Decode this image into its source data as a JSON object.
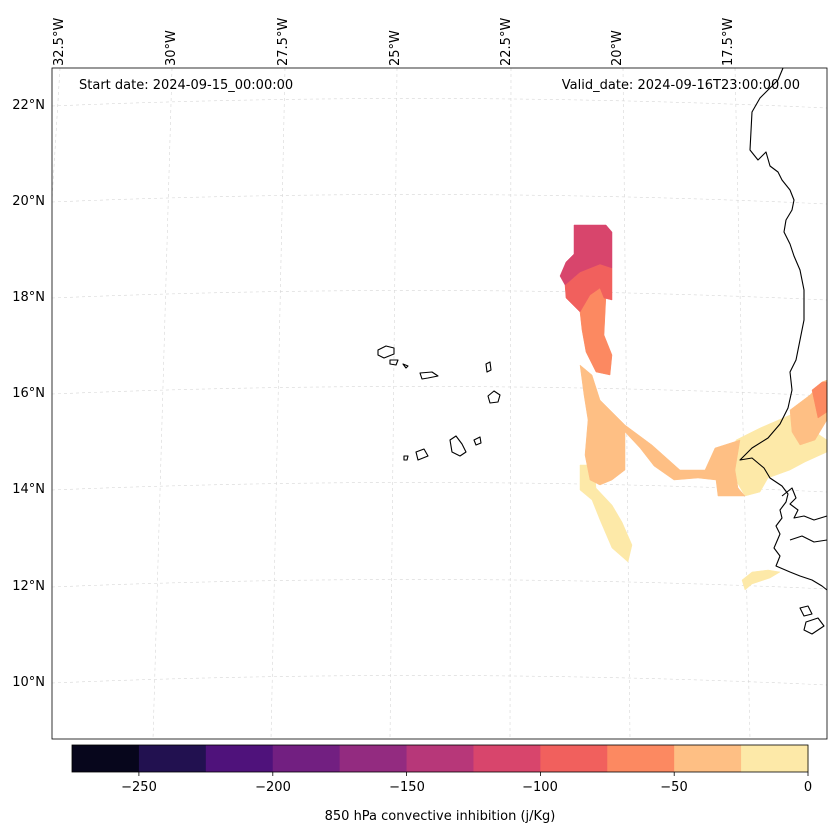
{
  "header": {
    "start_date": "Start date: 2024-09-15_00:00:00",
    "valid_date": "Valid_date: 2024-09-16T23:00:00.00"
  },
  "lon_labels": [
    "32.5°W",
    "30°W",
    "27.5°W",
    "25°W",
    "22.5°W",
    "20°W",
    "17.5°W"
  ],
  "lat_labels": [
    "22°N",
    "20°N",
    "18°N",
    "16°N",
    "14°N",
    "12°N",
    "10°N"
  ],
  "colorbar": {
    "title": "850 hPa convective inhibition (j/Kg)",
    "ticks": [
      "−250",
      "−200",
      "−150",
      "−100",
      "−50",
      "0"
    ],
    "colors": [
      "#07061c",
      "#221150",
      "#4f127b",
      "#721f81",
      "#932b80",
      "#b73779",
      "#d8456c",
      "#f1605d",
      "#fc8961",
      "#febf84",
      "#fde9a8"
    ]
  },
  "fields": {
    "level_m100_m125": "#d8456c",
    "level_m75_m100": "#f1605d",
    "level_m50_m75": "#fc8961",
    "level_m25_m50": "#febf84",
    "level_0_m25": "#fde9a8"
  },
  "map": {
    "frame_color": "#000000",
    "grid_color": "#cccccc"
  }
}
